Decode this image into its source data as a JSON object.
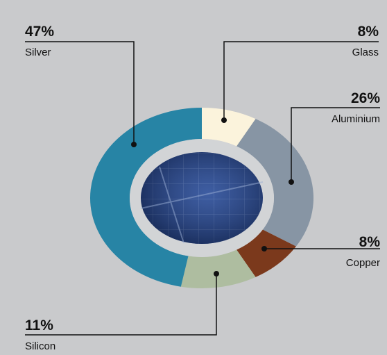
{
  "chart_data": {
    "type": "donut",
    "categories": [
      "Glass",
      "Aluminium",
      "Copper",
      "Silicon",
      "Silver"
    ],
    "values": [
      8,
      26,
      8,
      11,
      47
    ],
    "value_labels": [
      "8%",
      "26%",
      "8%",
      "11%",
      "47%"
    ],
    "colors": [
      "#fbf3dc",
      "#8795a4",
      "#7b391c",
      "#aebda0",
      "#2784a5"
    ]
  }
}
